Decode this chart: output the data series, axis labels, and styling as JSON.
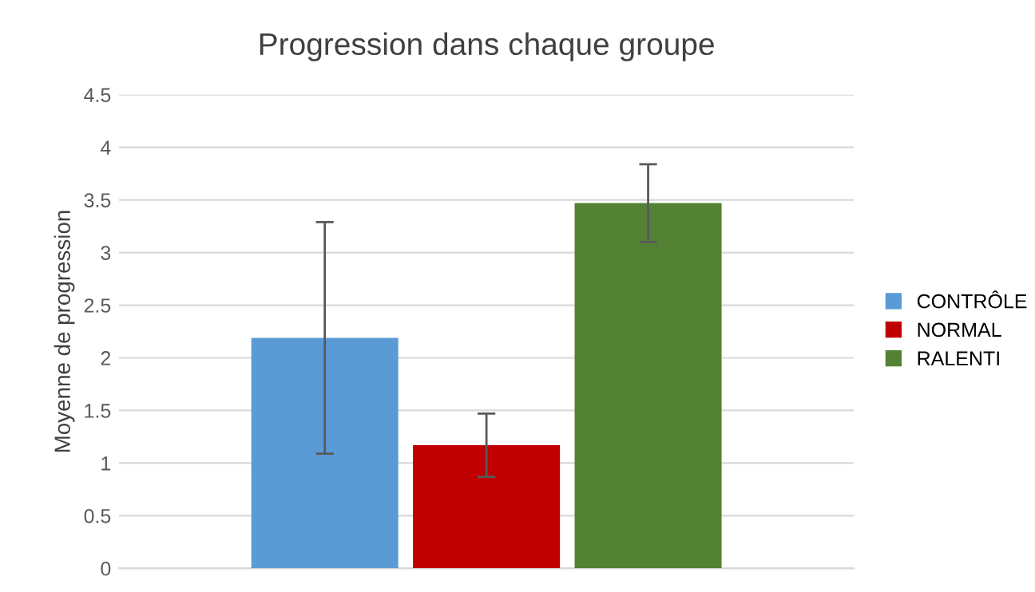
{
  "chart_data": {
    "type": "bar",
    "title": "Progression dans chaque groupe",
    "ylabel": "Moyenne de progression",
    "categories": [
      null
    ],
    "series": [
      {
        "name": "CONTRÔLE",
        "color": "#5b9bd5",
        "values": [
          2.19
        ],
        "errors": [
          1.1
        ]
      },
      {
        "name": "NORMAL",
        "color": "#c00000",
        "values": [
          1.17
        ],
        "errors": [
          0.3
        ]
      },
      {
        "name": "RALENTI",
        "color": "#548235",
        "values": [
          3.47
        ],
        "errors": [
          0.37
        ]
      }
    ],
    "ylim": [
      0,
      4.5
    ],
    "yticks": [
      0,
      0.5,
      1,
      1.5,
      2,
      2.5,
      3,
      3.5,
      4,
      4.5
    ],
    "grid": "y",
    "legend": "right",
    "tick_labels": "y"
  }
}
